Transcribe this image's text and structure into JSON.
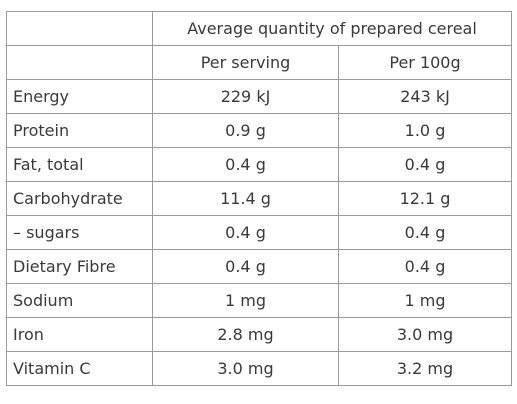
{
  "table": {
    "group_header": "Average quantity of prepared cereal",
    "col_headers": [
      "Per serving",
      "Per 100g"
    ],
    "rows": [
      {
        "label": "Energy",
        "serving": "229 kJ",
        "per100g": "243 kJ"
      },
      {
        "label": "Protein",
        "serving": "0.9 g",
        "per100g": "1.0 g"
      },
      {
        "label": "Fat, total",
        "serving": "0.4 g",
        "per100g": "0.4 g"
      },
      {
        "label": "Carbohydrate",
        "serving": "11.4 g",
        "per100g": "12.1 g"
      },
      {
        "label": "– sugars",
        "serving": "0.4 g",
        "per100g": "0.4 g"
      },
      {
        "label": "Dietary Fibre",
        "serving": "0.4 g",
        "per100g": "0.4 g"
      },
      {
        "label": "Sodium",
        "serving": "1 mg",
        "per100g": "1 mg"
      },
      {
        "label": "Iron",
        "serving": "2.8 mg",
        "per100g": "3.0 mg"
      },
      {
        "label": "Vitamin C",
        "serving": "3.0 mg",
        "per100g": "3.2 mg"
      }
    ]
  }
}
